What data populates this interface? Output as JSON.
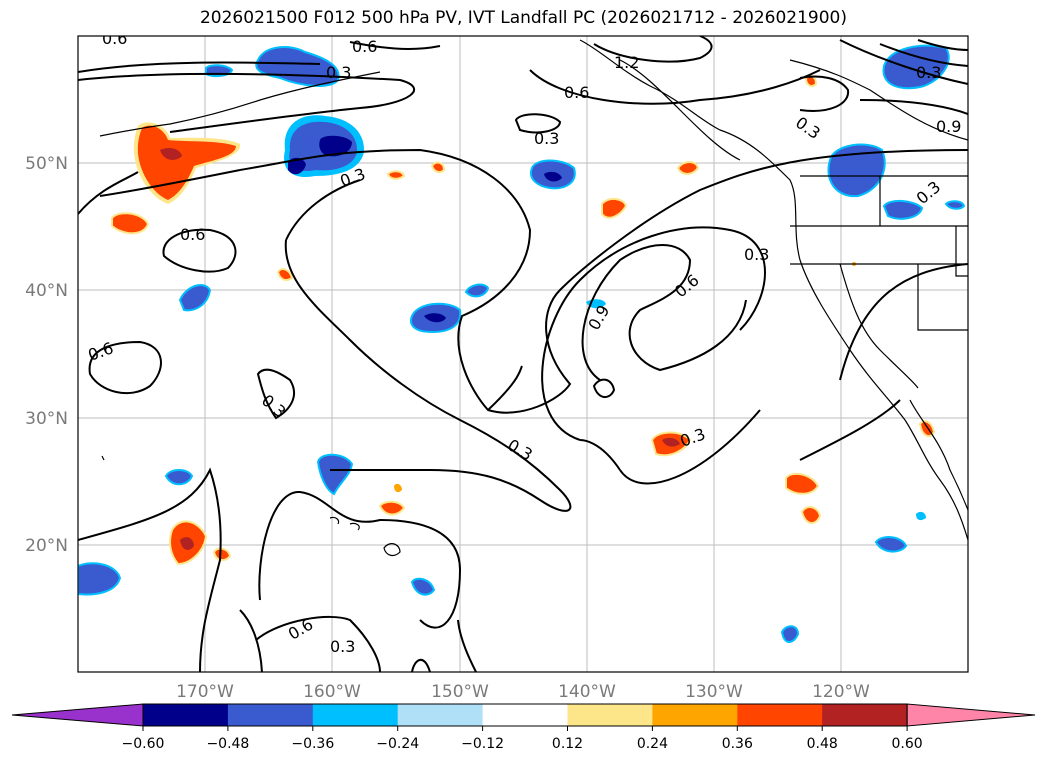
{
  "title": "2026021500 F012 500 hPa PV, IVT Landfall PC (2026021712 - 2026021900)",
  "lat_labels": [
    "50°N",
    "40°N",
    "30°N",
    "20°N"
  ],
  "lon_labels": [
    "170°W",
    "160°W",
    "150°W",
    "140°W",
    "130°W",
    "120°W"
  ],
  "colorbar": {
    "ticks": [
      "−0.60",
      "−0.48",
      "−0.36",
      "−0.24",
      "−0.12",
      "0.12",
      "0.24",
      "0.36",
      "0.48",
      "0.60"
    ],
    "colors": [
      "#9932cc",
      "#00008b",
      "#3a5bd0",
      "#00bfff",
      "#b0e0f8",
      "#ffffff",
      "#fde68a",
      "#ffa500",
      "#ff4500",
      "#b22222",
      "#ff85a8"
    ]
  },
  "contour_labels": [
    "0.6",
    "0.6",
    "0.3",
    "0.3",
    "1.2",
    "0.6",
    "0.3",
    "0.3",
    "0.9",
    "0.6",
    "0.3",
    "0.3",
    "0.6",
    "0.6",
    "0.9",
    "0.3",
    "0.3",
    "0.3",
    "0.3",
    "0.6",
    "0.3"
  ],
  "chart_data": {
    "type": "contour_map",
    "title": "2026021500 F012 500 hPa PV, IVT Landfall PC (2026021712 - 2026021900)",
    "fields": [
      "500 hPa PV anomaly (filled)",
      "IVT Landfall PC (contours)"
    ],
    "lon_range": [
      -180,
      -110
    ],
    "lat_range": [
      10,
      60
    ],
    "contour_levels": [
      0.3,
      0.6,
      0.9,
      1.2
    ],
    "fill_levels": [
      -0.6,
      -0.48,
      -0.36,
      -0.24,
      -0.12,
      0.12,
      0.24,
      0.36,
      0.48,
      0.6
    ],
    "colorbar_extend": "both"
  }
}
